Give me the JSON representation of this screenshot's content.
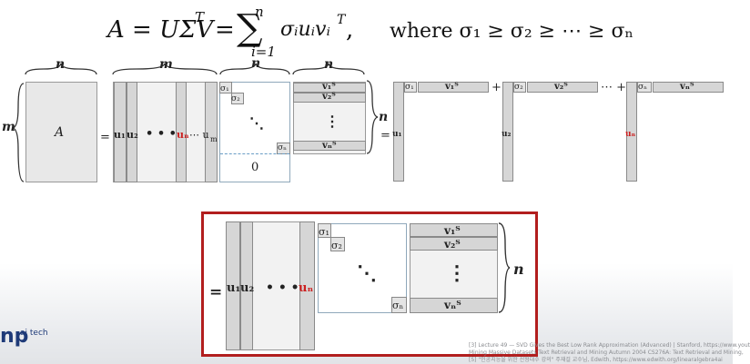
{
  "equation": {
    "lhs": "A = UΣV",
    "lhs_sup": "T",
    "equals": "=",
    "sum_symbol": "∑",
    "sum_upper": "n",
    "sum_lower": "i=1",
    "term": "σᵢuᵢvᵢ",
    "term_sup": "T",
    "comma": ",",
    "where_text": "where σ₁ ≥ σ₂ ≥ ⋯ ≥ σₙ"
  },
  "top_diagram": {
    "brace_labels": {
      "a_width": "n",
      "u_width": "m",
      "s_width": "n",
      "v_width": "n",
      "rows": "m",
      "v_rows": "n"
    },
    "matrix_label": "A",
    "equals": "=",
    "u_columns": {
      "u1": "u₁",
      "u2": "u₂",
      "dots": "• • •",
      "un": "uₙ",
      "tail": "⋯ u",
      "tail_sub": "m"
    },
    "sigma": {
      "s1": "σ₁",
      "s2": "σ₂",
      "dots": "⋱",
      "sn": "σₙ",
      "zero": "0"
    },
    "v_rows": {
      "v1": "v₁ᵀ",
      "v2": "v₂ᵀ",
      "vdots": "⋮",
      "vn": "vₙᵀ"
    },
    "outer": {
      "equals": "=",
      "u1": "u₁",
      "u2": "u₂",
      "un": "uₙ",
      "s1": "σ₁",
      "s2": "σ₂",
      "sn": "σₙ",
      "v1": "v₁ᵀ",
      "v2": "v₂ᵀ",
      "vn": "vₙᵀ",
      "plus": "+",
      "plus_dots": "⋯ +"
    }
  },
  "reduced_diagram": {
    "equals": "=",
    "u_columns": {
      "u1": "u₁",
      "u2": "u₂",
      "dots": "• • •",
      "un": "uₙ"
    },
    "sigma": {
      "s1": "σ₁",
      "s2": "σ₂",
      "dots": "⋱",
      "sn": "σₙ"
    },
    "v_rows": {
      "v1": "v₁ᵀ",
      "v2": "v₂ᵀ",
      "vdots": "⋮",
      "vn": "vₙᵀ"
    },
    "brace_label": "n"
  },
  "footer": {
    "logo": "np",
    "logo_sup": "ai tech",
    "references": [
      "[3] Lecture 49 — SVD Gives the Best Low Rank Approximation (Advanced) | Stanford, https://www.yout",
      "Mining Massive Datasets Text Retrieval and Mining Autumn 2004 CS276A: Text Retrieval and Mining,",
      "[5] \"인공지능을 위한 선형대수 강의\" 주재걸 교수님, Edwith, https://www.edwith.org/linearalgebra4ai"
    ]
  },
  "colors": {
    "frame": "#b21e1e",
    "highlight_index": "#cc2020",
    "bar_fill": "#d6d6d6",
    "logo": "#1e3a78"
  }
}
